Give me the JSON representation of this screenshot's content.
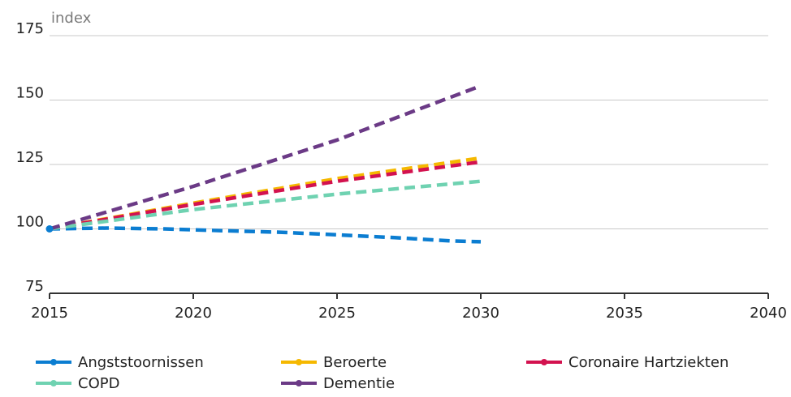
{
  "chart_data": {
    "type": "line",
    "ylabel": "index",
    "xlim": [
      2015,
      2040
    ],
    "ylim": [
      75,
      175
    ],
    "xticks": [
      2015,
      2020,
      2025,
      2030,
      2035,
      2040
    ],
    "yticks": [
      75,
      100,
      125,
      150,
      175
    ],
    "grid": "horizontal",
    "legend_position": "bottom",
    "series": [
      {
        "name": "Angststoornissen",
        "color": "#0b7dd1",
        "dashed": true,
        "x": [
          2015,
          2017,
          2019,
          2021,
          2023,
          2025,
          2027,
          2029,
          2030
        ],
        "values": [
          100,
          100.3,
          100,
          99.3,
          98.7,
          97.7,
          96.6,
          95.3,
          95
        ]
      },
      {
        "name": "Beroerte",
        "color": "#f5b800",
        "dashed": true,
        "x": [
          2015,
          2020,
          2025,
          2030
        ],
        "values": [
          100,
          110,
          119.5,
          127.5
        ]
      },
      {
        "name": "Coronaire Hartziekten",
        "color": "#d3124f",
        "dashed": true,
        "x": [
          2015,
          2020,
          2025,
          2030
        ],
        "values": [
          100,
          109.5,
          118.5,
          126
        ]
      },
      {
        "name": "COPD",
        "color": "#6fd2b1",
        "dashed": true,
        "x": [
          2015,
          2020,
          2025,
          2030
        ],
        "values": [
          100,
          107.5,
          113.5,
          118.5
        ]
      },
      {
        "name": "Dementie",
        "color": "#6b3a86",
        "dashed": true,
        "x": [
          2015,
          2020,
          2025,
          2030
        ],
        "values": [
          100,
          116.5,
          134.5,
          155.5
        ]
      }
    ]
  }
}
